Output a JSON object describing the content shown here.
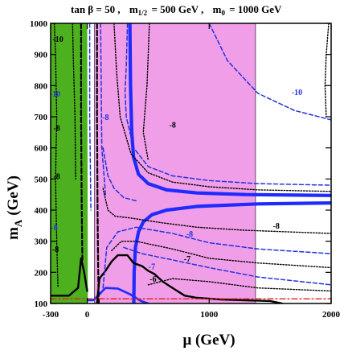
{
  "chart_data": {
    "type": "contour",
    "title": "tan β = 50 ,  m1/2 = 500 GeV ,  m0 = 1000 GeV",
    "title_parts": {
      "tanb": "tan β = 50 ,",
      "mhalf_sym": "m",
      "mhalf_sub": "1/2",
      "mhalf_val": "= 500 GeV ,",
      "m0_sym": "m",
      "m0_sub": "0",
      "m0_val": "= 1000 GeV"
    },
    "xlabel": "μ (GeV)",
    "ylabel_main": "m",
    "ylabel_sub": "A",
    "ylabel_unit": "(GeV)",
    "xlim": [
      -300,
      2000
    ],
    "ylim": [
      100,
      1000
    ],
    "xticks": [
      {
        "value": -300,
        "label": "-300"
      },
      {
        "value": 0,
        "label": "0"
      },
      {
        "value": 1000,
        "label": "1000"
      },
      {
        "value": 2000,
        "label": "2000"
      }
    ],
    "yticks": [
      {
        "value": 100,
        "label": "100"
      },
      {
        "value": 200,
        "label": "200"
      },
      {
        "value": 300,
        "label": "300"
      },
      {
        "value": 400,
        "label": "400"
      },
      {
        "value": 500,
        "label": "500"
      },
      {
        "value": 600,
        "label": "600"
      },
      {
        "value": 700,
        "label": "700"
      },
      {
        "value": 800,
        "label": "800"
      },
      {
        "value": 900,
        "label": "900"
      },
      {
        "value": 1000,
        "label": "1000"
      }
    ],
    "colors": {
      "excluded_region": "#4db01e",
      "allowed_region": "#f09ee8",
      "wmap_band": "#1f2bff",
      "blue_dashed": "#2233dd",
      "black_dotted": "#000000",
      "red_line": "#dd2222",
      "black_solid": "#000000"
    },
    "regions": [
      {
        "name": "green",
        "polygon": [
          [
            -300,
            100
          ],
          [
            -300,
            1000
          ],
          [
            0,
            1000
          ],
          [
            5,
            100
          ]
        ]
      },
      {
        "name": "pink",
        "polygon": [
          [
            60,
            1000
          ],
          [
            1380,
            1000
          ],
          [
            1380,
            100
          ],
          [
            60,
            100
          ]
        ]
      }
    ],
    "series": [
      {
        "style": "wmap",
        "points": [
          [
            350,
            1000
          ],
          [
            355,
            800
          ],
          [
            365,
            650
          ],
          [
            380,
            570
          ],
          [
            420,
            515
          ],
          [
            500,
            485
          ],
          [
            650,
            465
          ],
          [
            900,
            455
          ],
          [
            1300,
            450
          ],
          [
            2000,
            447
          ]
        ]
      },
      {
        "style": "wmap",
        "points": [
          [
            2000,
            423
          ],
          [
            1400,
            420
          ],
          [
            900,
            412
          ],
          [
            650,
            400
          ],
          [
            530,
            385
          ],
          [
            460,
            362
          ],
          [
            420,
            330
          ],
          [
            395,
            280
          ],
          [
            385,
            200
          ],
          [
            382,
            100
          ]
        ]
      },
      {
        "style": "wmap-thin",
        "points": [
          [
            5,
            110
          ],
          [
            50,
            110
          ],
          [
            100,
            130
          ],
          [
            150,
            150
          ],
          [
            250,
            148
          ],
          [
            350,
            130
          ],
          [
            440,
            108
          ],
          [
            500,
            100
          ]
        ]
      },
      {
        "style": "black-solid",
        "points": [
          [
            -300,
            125
          ],
          [
            -150,
            125
          ],
          [
            -75,
            150
          ],
          [
            -50,
            245
          ],
          [
            -25,
            200
          ],
          [
            0,
            140
          ]
        ]
      },
      {
        "style": "black-solid",
        "points": [
          [
            80,
            100
          ],
          [
            100,
            180
          ],
          [
            150,
            205
          ],
          [
            200,
            235
          ],
          [
            250,
            255
          ],
          [
            330,
            255
          ],
          [
            380,
            230
          ],
          [
            450,
            220
          ],
          [
            500,
            205
          ],
          [
            550,
            195
          ],
          [
            620,
            170
          ],
          [
            700,
            150
          ],
          [
            800,
            125
          ],
          [
            900,
            118
          ],
          [
            1100,
            113
          ],
          [
            1300,
            110
          ],
          [
            1500,
            108
          ],
          [
            1600,
            100
          ]
        ]
      },
      {
        "style": "black-dash",
        "points": [
          [
            -50,
            1000
          ],
          [
            -50,
            700
          ],
          [
            -45,
            400
          ],
          [
            -40,
            240
          ]
        ]
      },
      {
        "style": "black-dash",
        "points": [
          [
            80,
            1000
          ],
          [
            80,
            700
          ],
          [
            85,
            400
          ],
          [
            90,
            200
          ],
          [
            95,
            100
          ]
        ]
      },
      {
        "style": "red-dashdot",
        "points": [
          [
            -300,
            115
          ],
          [
            2000,
            115
          ]
        ]
      },
      {
        "style": "blue-dashed",
        "points": [
          [
            20,
            1000
          ],
          [
            20,
            700
          ],
          [
            30,
            400
          ]
        ]
      },
      {
        "style": "blue-dashed",
        "points": [
          [
            110,
            1000
          ],
          [
            120,
            600
          ],
          [
            150,
            450
          ]
        ]
      },
      {
        "style": "blue-dashed",
        "points": [
          [
            330,
            1000
          ],
          [
            320,
            860
          ],
          [
            310,
            780
          ],
          [
            320,
            700
          ],
          [
            380,
            600
          ],
          [
            500,
            540
          ],
          [
            700,
            510
          ],
          [
            1000,
            495
          ],
          [
            1400,
            485
          ],
          [
            2000,
            480
          ]
        ]
      },
      {
        "style": "blue-dashed",
        "points": [
          [
            130,
            600
          ],
          [
            170,
            510
          ],
          [
            220,
            470
          ],
          [
            300,
            440
          ],
          [
            400,
            430
          ]
        ]
      },
      {
        "style": "blue-dashed",
        "points": [
          [
            130,
            150
          ],
          [
            160,
            280
          ],
          [
            250,
            330
          ],
          [
            400,
            345
          ],
          [
            700,
            325
          ],
          [
            1000,
            295
          ],
          [
            1400,
            275
          ],
          [
            2000,
            260
          ]
        ]
      },
      {
        "style": "blue-dashed",
        "points": [
          [
            300,
            280
          ],
          [
            450,
            260
          ],
          [
            700,
            240
          ],
          [
            1000,
            215
          ],
          [
            1400,
            185
          ],
          [
            2000,
            160
          ]
        ]
      },
      {
        "style": "blue-dashed",
        "points": [
          [
            1000,
            1000
          ],
          [
            1150,
            880
          ],
          [
            1400,
            775
          ],
          [
            1700,
            720
          ],
          [
            2000,
            690
          ]
        ]
      },
      {
        "style": "black-dotted",
        "points": [
          [
            220,
            1000
          ],
          [
            240,
            850
          ],
          [
            270,
            700
          ],
          [
            360,
            580
          ],
          [
            500,
            520
          ],
          [
            700,
            490
          ],
          [
            1000,
            475
          ],
          [
            1400,
            465
          ],
          [
            2000,
            460
          ]
        ]
      },
      {
        "style": "black-dotted",
        "points": [
          [
            510,
            1000
          ],
          [
            490,
            800
          ],
          [
            460,
            650
          ],
          [
            500,
            560
          ]
        ]
      },
      {
        "style": "black-dotted",
        "points": [
          [
            130,
            470
          ],
          [
            170,
            400
          ],
          [
            230,
            380
          ],
          [
            350,
            375
          ],
          [
            600,
            360
          ],
          [
            900,
            345
          ],
          [
            1300,
            335
          ],
          [
            2000,
            325
          ]
        ]
      },
      {
        "style": "black-dotted",
        "points": [
          [
            200,
            270
          ],
          [
            280,
            300
          ],
          [
            400,
            300
          ],
          [
            700,
            275
          ],
          [
            1000,
            245
          ],
          [
            1400,
            230
          ],
          [
            2000,
            215
          ]
        ]
      },
      {
        "style": "black-dotted",
        "points": [
          [
            500,
            160
          ],
          [
            700,
            180
          ],
          [
            1000,
            170
          ],
          [
            1400,
            150
          ],
          [
            2000,
            140
          ]
        ]
      },
      {
        "style": "black-dotted",
        "points": [
          [
            -270,
            1000
          ],
          [
            -260,
            900
          ],
          [
            -250,
            700
          ],
          [
            -260,
            500
          ],
          [
            -250,
            300
          ],
          [
            -240,
            150
          ]
        ]
      },
      {
        "style": "black-dotted",
        "points": [
          [
            -120,
            1000
          ],
          [
            -115,
            900
          ],
          [
            -100,
            700
          ],
          [
            -95,
            500
          ]
        ]
      },
      {
        "style": "black-dotted",
        "points": [
          [
            1980,
            1000
          ],
          [
            1960,
            900
          ],
          [
            1950,
            800
          ],
          [
            1960,
            700
          ]
        ]
      }
    ],
    "contour_labels": [
      {
        "text": "-10",
        "x": -240,
        "y": 940,
        "color": "black"
      },
      {
        "text": "-10",
        "x": -265,
        "y": 765,
        "color": "blue"
      },
      {
        "text": "-8",
        "x": -250,
        "y": 655,
        "color": "black"
      },
      {
        "text": "-8",
        "x": -250,
        "y": 500,
        "color": "black"
      },
      {
        "text": "-8",
        "x": 150,
        "y": 690,
        "color": "blue"
      },
      {
        "text": "-8",
        "x": 700,
        "y": 665,
        "color": "black"
      },
      {
        "text": "-10",
        "x": 1720,
        "y": 770,
        "color": "blue"
      },
      {
        "text": "-8",
        "x": 1550,
        "y": 340,
        "color": "black"
      },
      {
        "text": "-8",
        "x": 840,
        "y": 315,
        "color": "blue"
      },
      {
        "text": "-7",
        "x": 820,
        "y": 235,
        "color": "black"
      },
      {
        "text": "-7",
        "x": 530,
        "y": 210,
        "color": "blue"
      },
      {
        "text": "-6",
        "x": 540,
        "y": 170,
        "color": "black"
      },
      {
        "text": "-8",
        "x": -270,
        "y": 335,
        "color": "blue"
      },
      {
        "text": "-8",
        "x": -260,
        "y": 265,
        "color": "black"
      }
    ]
  }
}
